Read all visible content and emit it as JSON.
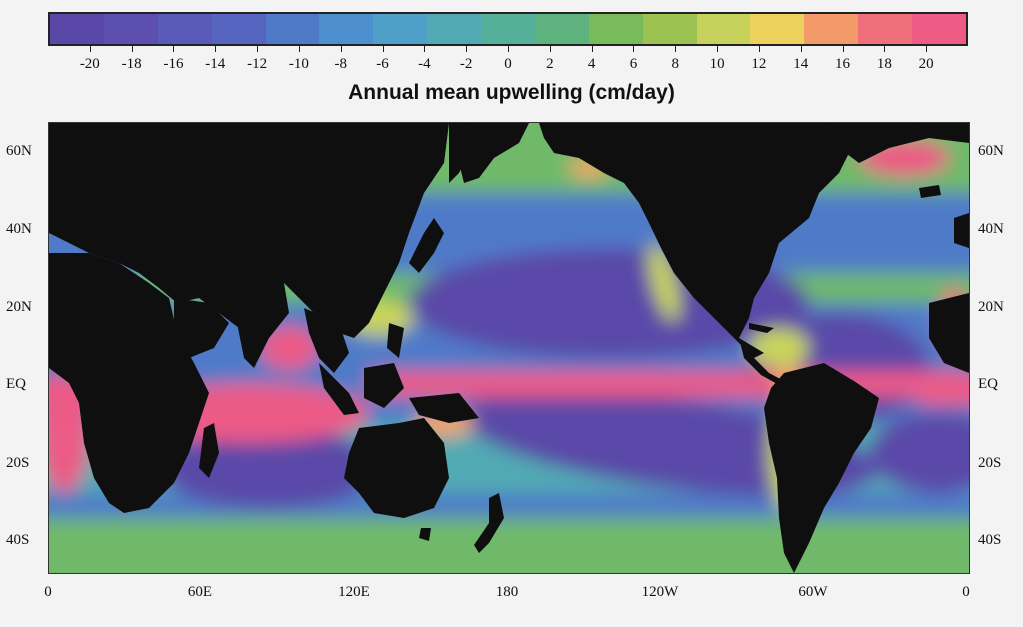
{
  "colorbar": {
    "title": "Annual mean upwelling (cm/day)",
    "tick_labels": [
      "-20",
      "-18",
      "-16",
      "-14",
      "-12",
      "-10",
      "-8",
      "-6",
      "-4",
      "-2",
      "0",
      "2",
      "4",
      "6",
      "8",
      "10",
      "12",
      "14",
      "16",
      "18",
      "20"
    ],
    "range": [
      -22,
      22
    ],
    "colors": [
      "#5a48a8",
      "#5d4fb0",
      "#5a5ab8",
      "#5666c0",
      "#4f7ac8",
      "#4d8fcf",
      "#4ea0c8",
      "#51aab3",
      "#55b09a",
      "#5eb27e",
      "#79ba5c",
      "#9cc352",
      "#c6d25b",
      "#ecd25d",
      "#f39a6a",
      "#ef6f7b",
      "#ee5c86"
    ]
  },
  "map": {
    "lat_labels": [
      "60N",
      "40N",
      "20N",
      "EQ",
      "20S",
      "40S"
    ],
    "lon_labels": [
      "0",
      "60E",
      "120E",
      "180",
      "120W",
      "60W",
      "0"
    ],
    "land_color": "#0f0f10",
    "colors": {
      "strong_downwelling": "#5a48a8",
      "downwelling": "#4f7ac8",
      "weak": "#51aab3",
      "neutral": "#6fb96a",
      "upwelling": "#c9d45a",
      "strong_upwelling": "#ec5a86",
      "coastal_upwelling": "#f1a468"
    }
  }
}
